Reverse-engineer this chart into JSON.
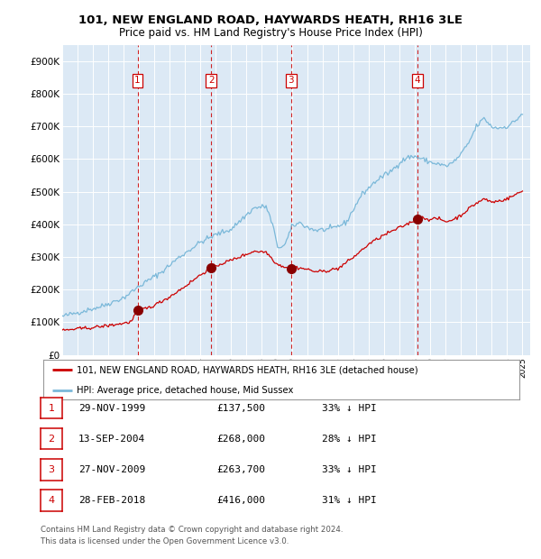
{
  "title": "101, NEW ENGLAND ROAD, HAYWARDS HEATH, RH16 3LE",
  "subtitle": "Price paid vs. HM Land Registry's House Price Index (HPI)",
  "bg_color": "#dce9f5",
  "grid_color": "#ffffff",
  "ylim": [
    0,
    950000
  ],
  "yticks": [
    0,
    100000,
    200000,
    300000,
    400000,
    500000,
    600000,
    700000,
    800000,
    900000
  ],
  "ytick_labels": [
    "£0",
    "£100K",
    "£200K",
    "£300K",
    "£400K",
    "£500K",
    "£600K",
    "£700K",
    "£800K",
    "£900K"
  ],
  "sale_dates_decimal": [
    1999.91,
    2004.71,
    2009.91,
    2018.16
  ],
  "sale_prices": [
    137500,
    268000,
    263700,
    416000
  ],
  "sale_labels": [
    "1",
    "2",
    "3",
    "4"
  ],
  "legend_property": "101, NEW ENGLAND ROAD, HAYWARDS HEATH, RH16 3LE (detached house)",
  "legend_hpi": "HPI: Average price, detached house, Mid Sussex",
  "footer_line1": "Contains HM Land Registry data © Crown copyright and database right 2024.",
  "footer_line2": "This data is licensed under the Open Government Licence v3.0.",
  "red_line_color": "#cc0000",
  "blue_line_color": "#7ab8d9",
  "sale_marker_color": "#880000",
  "table_rows": [
    [
      "1",
      "29-NOV-1999",
      "£137,500",
      "33% ↓ HPI"
    ],
    [
      "2",
      "13-SEP-2004",
      "£268,000",
      "28% ↓ HPI"
    ],
    [
      "3",
      "27-NOV-2009",
      "£263,700",
      "33% ↓ HPI"
    ],
    [
      "4",
      "28-FEB-2018",
      "£416,000",
      "31% ↓ HPI"
    ]
  ]
}
